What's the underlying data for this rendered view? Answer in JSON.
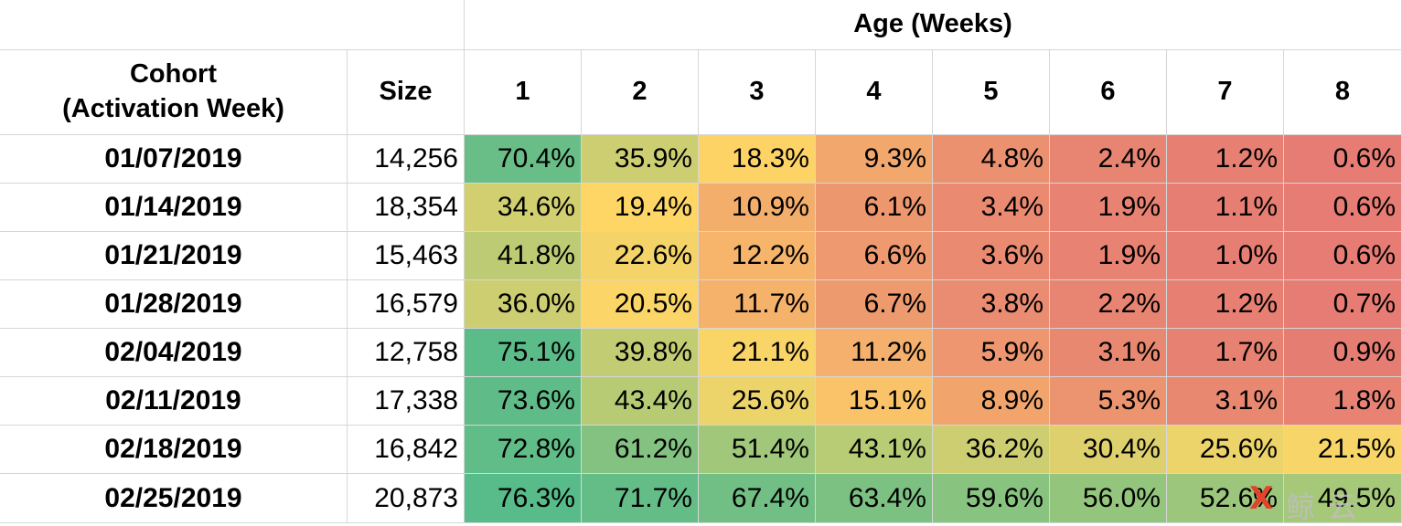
{
  "table": {
    "age_header": "Age (Weeks)",
    "cohort_header": "Cohort\n(Activation Week)",
    "size_header": "Size",
    "age_columns": [
      "1",
      "2",
      "3",
      "4",
      "5",
      "6",
      "7",
      "8"
    ]
  },
  "chart_data": {
    "type": "heatmap",
    "color_scale": {
      "low": "#e67c73",
      "mid": "#ffd666",
      "high": "#57bb8a"
    },
    "rows": [
      {
        "cohort": "01/07/2019",
        "size": "14,256",
        "values": [
          70.4,
          35.9,
          18.3,
          9.3,
          4.8,
          2.4,
          1.2,
          0.6
        ],
        "labels": [
          "70.4%",
          "35.9%",
          "18.3%",
          "9.3%",
          "4.8%",
          "2.4%",
          "1.2%",
          "0.6%"
        ]
      },
      {
        "cohort": "01/14/2019",
        "size": "18,354",
        "values": [
          34.6,
          19.4,
          10.9,
          6.1,
          3.4,
          1.9,
          1.1,
          0.6
        ],
        "labels": [
          "34.6%",
          "19.4%",
          "10.9%",
          "6.1%",
          "3.4%",
          "1.9%",
          "1.1%",
          "0.6%"
        ]
      },
      {
        "cohort": "01/21/2019",
        "size": "15,463",
        "values": [
          41.8,
          22.6,
          12.2,
          6.6,
          3.6,
          1.9,
          1.0,
          0.6
        ],
        "labels": [
          "41.8%",
          "22.6%",
          "12.2%",
          "6.6%",
          "3.6%",
          "1.9%",
          "1.0%",
          "0.6%"
        ]
      },
      {
        "cohort": "01/28/2019",
        "size": "16,579",
        "values": [
          36.0,
          20.5,
          11.7,
          6.7,
          3.8,
          2.2,
          1.2,
          0.7
        ],
        "labels": [
          "36.0%",
          "20.5%",
          "11.7%",
          "6.7%",
          "3.8%",
          "2.2%",
          "1.2%",
          "0.7%"
        ]
      },
      {
        "cohort": "02/04/2019",
        "size": "12,758",
        "values": [
          75.1,
          39.8,
          21.1,
          11.2,
          5.9,
          3.1,
          1.7,
          0.9
        ],
        "labels": [
          "75.1%",
          "39.8%",
          "21.1%",
          "11.2%",
          "5.9%",
          "3.1%",
          "1.7%",
          "0.9%"
        ]
      },
      {
        "cohort": "02/11/2019",
        "size": "17,338",
        "values": [
          73.6,
          43.4,
          25.6,
          15.1,
          8.9,
          5.3,
          3.1,
          1.8
        ],
        "labels": [
          "73.6%",
          "43.4%",
          "25.6%",
          "15.1%",
          "8.9%",
          "5.3%",
          "3.1%",
          "1.8%"
        ]
      },
      {
        "cohort": "02/18/2019",
        "size": "16,842",
        "values": [
          72.8,
          61.2,
          51.4,
          43.1,
          36.2,
          30.4,
          25.6,
          21.5
        ],
        "labels": [
          "72.8%",
          "61.2%",
          "51.4%",
          "43.1%",
          "36.2%",
          "30.4%",
          "25.6%",
          "21.5%"
        ]
      },
      {
        "cohort": "02/25/2019",
        "size": "20,873",
        "values": [
          76.3,
          71.7,
          67.4,
          63.4,
          59.6,
          56.0,
          52.6,
          49.5
        ],
        "labels": [
          "76.3%",
          "71.7%",
          "67.4%",
          "63.4%",
          "59.6%",
          "56.0%",
          "52.6%",
          "49.5%"
        ]
      }
    ]
  },
  "watermark": {
    "mark": "X",
    "text": "鲸 云"
  }
}
